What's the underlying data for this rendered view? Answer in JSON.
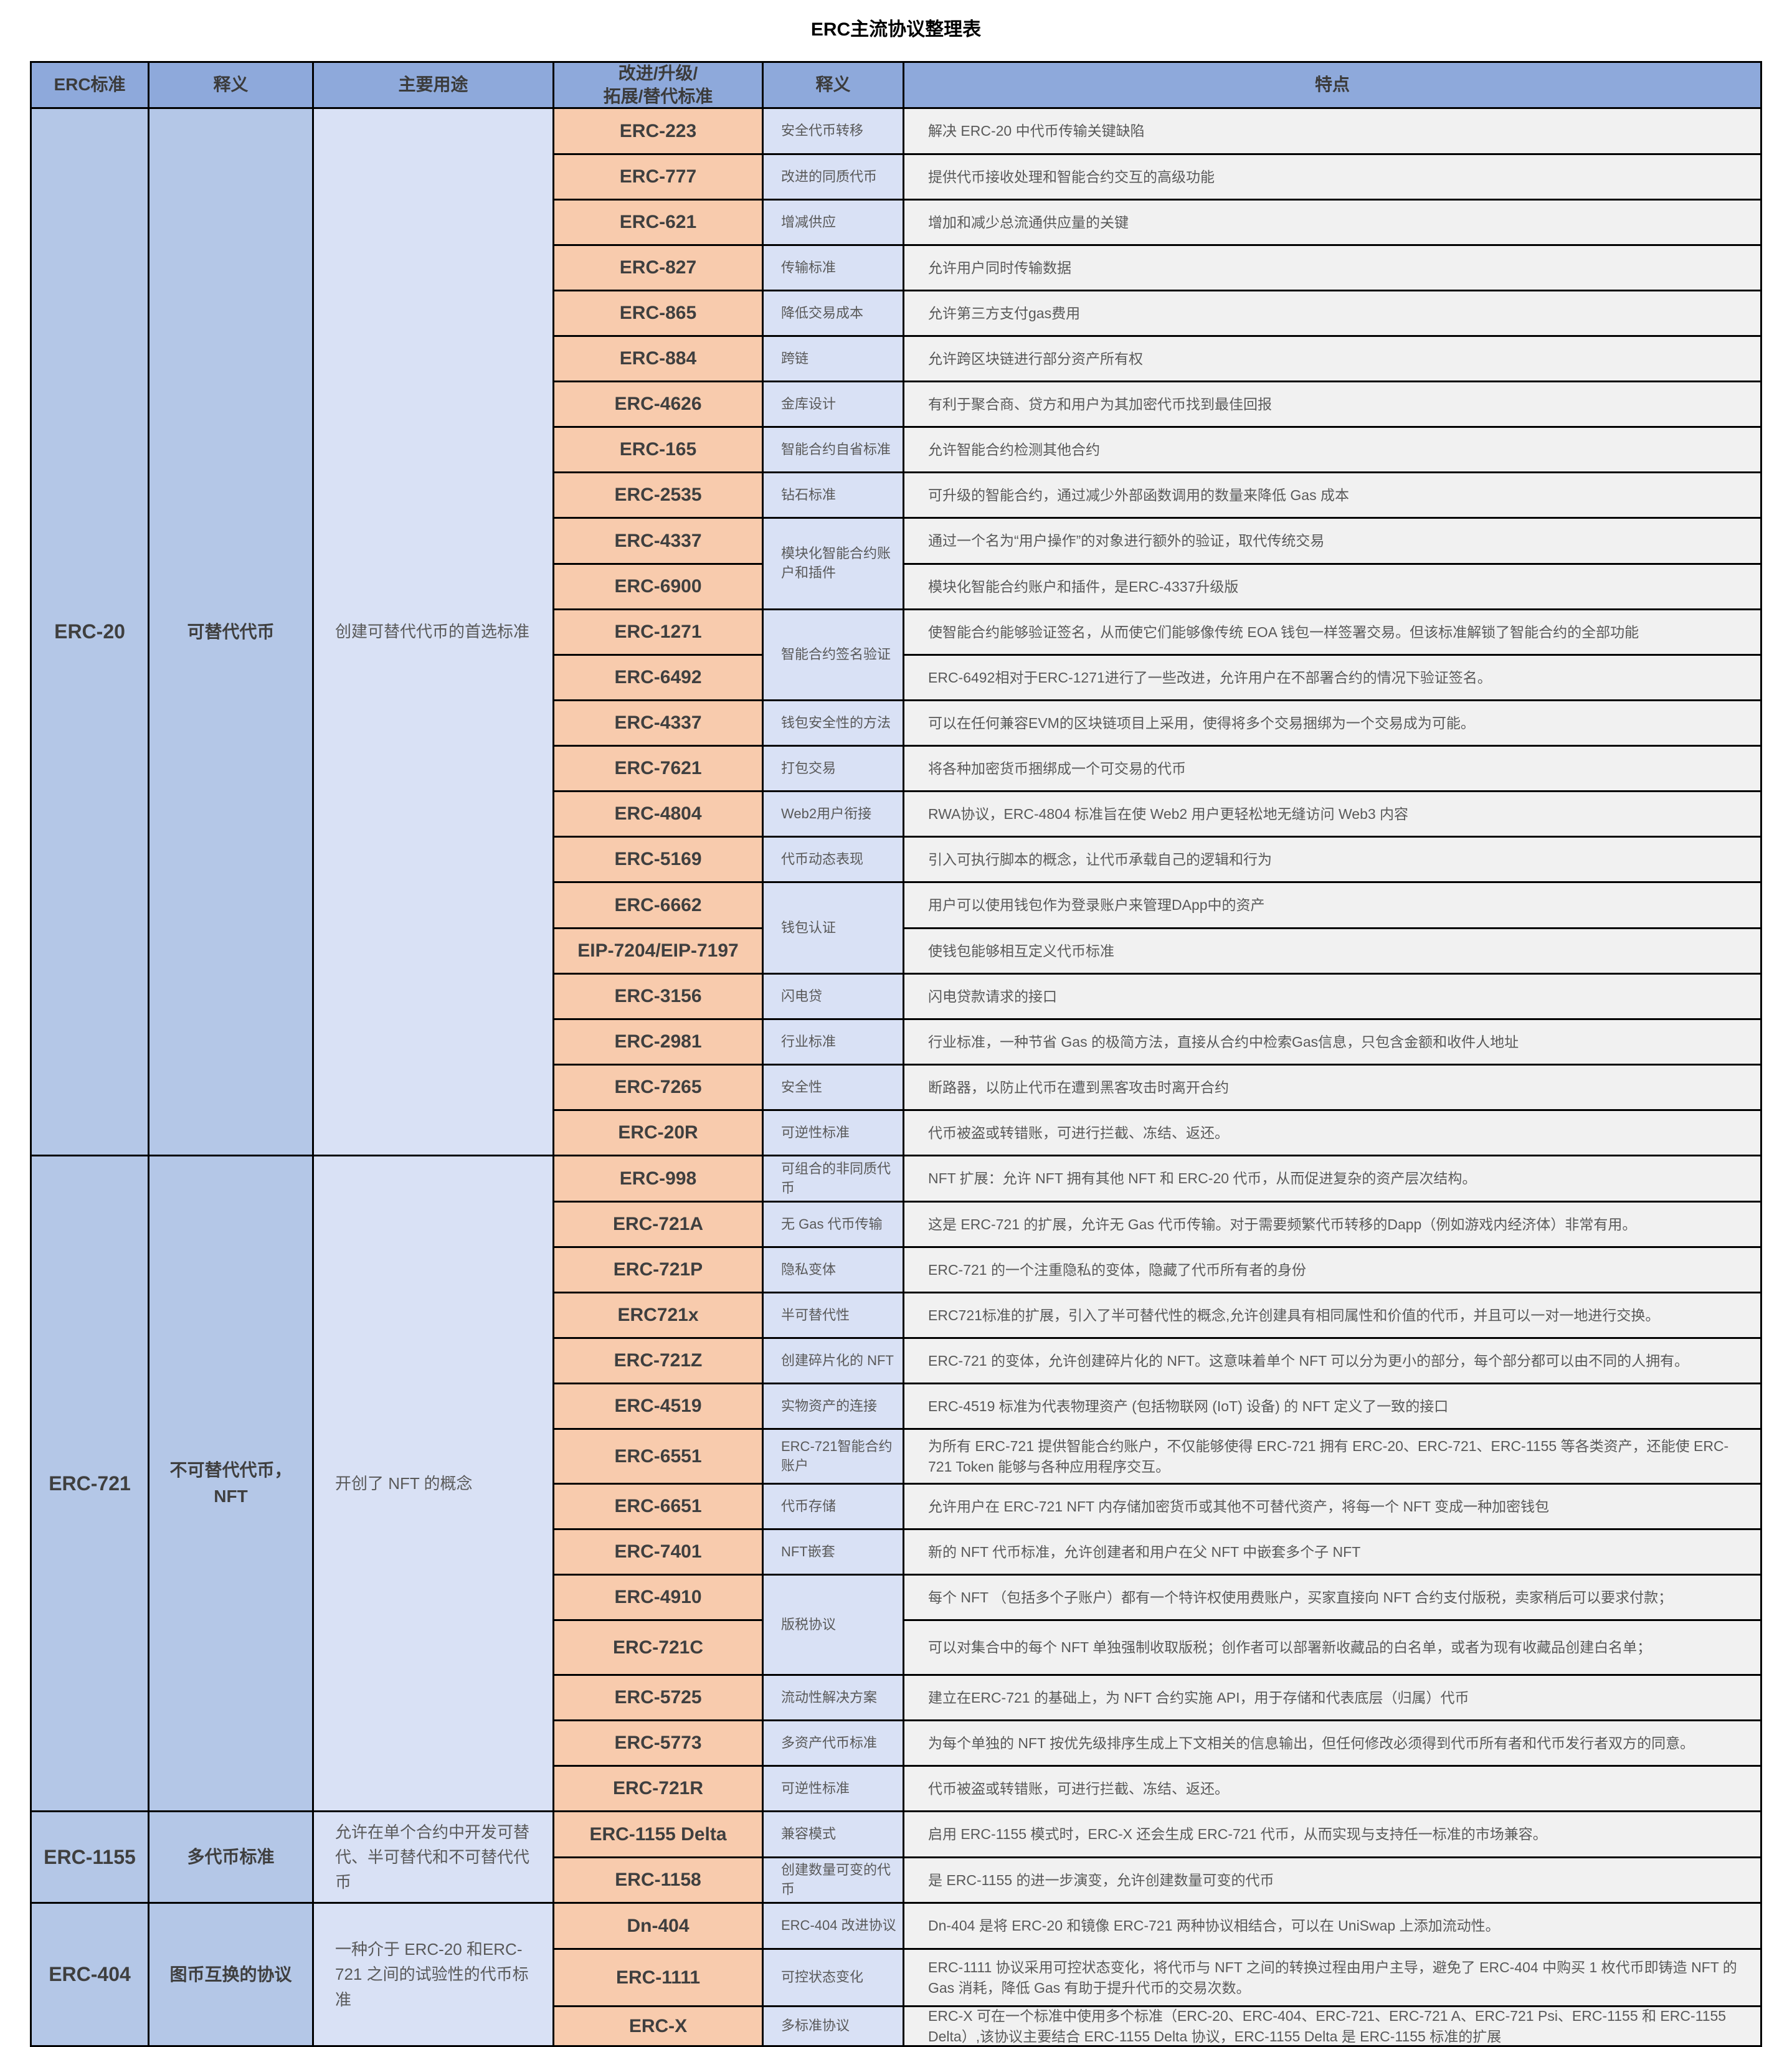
{
  "title": "ERC主流协议整理表",
  "header": [
    "ERC标准",
    "释义",
    "主要用途",
    "改进/升级/\n拓展/替代标准",
    "释义",
    "特点"
  ],
  "colors": {
    "header_bg": "#8EA9DB",
    "group_bg": "#B4C7E7",
    "usage_bg": "#D9E1F5",
    "standard_bg": "#F8CBAD",
    "definition_bg": "#D9E1F5",
    "feature_bg": "#F1F1F1",
    "border": "#000000",
    "text_dark": "#3F3F3F",
    "text_gray": "#595959"
  },
  "groups": [
    {
      "standard": "ERC-20",
      "meaning": "可替代代币",
      "usage": "创建可替代代币的首选标准",
      "rows": [
        {
          "std": "ERC-223",
          "def": "安全代币转移",
          "span": 1,
          "feat": "解决 ERC-20 中代币传输关键缺陷",
          "h": 74
        },
        {
          "std": "ERC-777",
          "def": "改进的同质代币",
          "span": 1,
          "feat": "提供代币接收处理和智能合约交互的高级功能",
          "h": 73
        },
        {
          "std": "ERC-621",
          "def": "增减供应",
          "span": 1,
          "feat": "增加和减少总流通供应量的关键",
          "h": 73
        },
        {
          "std": "ERC-827",
          "def": "传输标准",
          "span": 1,
          "feat": "允许用户同时传输数据",
          "h": 73
        },
        {
          "std": "ERC-865",
          "def": "降低交易成本",
          "span": 1,
          "feat": "允许第三方支付gas费用",
          "h": 73
        },
        {
          "std": "ERC-884",
          "def": "跨链",
          "span": 1,
          "feat": "允许跨区块链进行部分资产所有权",
          "h": 73
        },
        {
          "std": "ERC-4626",
          "def": "金库设计",
          "span": 1,
          "feat": "有利于聚合商、贷方和用户为其加密代币找到最佳回报",
          "h": 73
        },
        {
          "std": "ERC-165",
          "def": "智能合约自省标准",
          "span": 1,
          "feat": "允许智能合约检测其他合约",
          "h": 73
        },
        {
          "std": "ERC-2535",
          "def": "钻石标准",
          "span": 1,
          "feat": "可升级的智能合约，通过减少外部函数调用的数量来降低 Gas 成本",
          "h": 73
        },
        {
          "std": "ERC-4337",
          "def": "模块化智能合约账户和插件",
          "span": 2,
          "feat": "通过一个名为“用户操作”的对象进行额外的验证，取代传统交易",
          "h": 74
        },
        {
          "std": "ERC-6900",
          "def": null,
          "span": 0,
          "feat": "模块化智能合约账户和插件，是ERC-4337升级版",
          "h": 73
        },
        {
          "std": "ERC-1271",
          "def": "智能合约签名验证",
          "span": 2,
          "feat": "使智能合约能够验证签名，从而使它们能够像传统 EOA 钱包一样签署交易。但该标准解锁了智能合约的全部功能",
          "h": 73
        },
        {
          "std": "ERC-6492",
          "def": null,
          "span": 0,
          "feat": "ERC-6492相对于ERC-1271进行了一些改进，允许用户在不部署合约的情况下验证签名。",
          "h": 73
        },
        {
          "std": "ERC-4337",
          "def": "钱包安全性的方法",
          "span": 1,
          "feat": "可以在任何兼容EVM的区块链项目上采用，使得将多个交易捆绑为一个交易成为可能。",
          "h": 73
        },
        {
          "std": "ERC-7621",
          "def": "打包交易",
          "span": 1,
          "feat": "将各种加密货币捆绑成一个可交易的代币",
          "h": 73
        },
        {
          "std": "ERC-4804",
          "def": "Web2用户衔接",
          "span": 1,
          "feat": "RWA协议，ERC-4804 标准旨在使 Web2 用户更轻松地无缝访问 Web3 内容",
          "h": 73
        },
        {
          "std": "ERC-5169",
          "def": "代币动态表现",
          "span": 1,
          "feat": "引入可执行脚本的概念，让代币承载自己的逻辑和行为",
          "h": 73
        },
        {
          "std": "ERC-6662",
          "def": "钱包认证",
          "span": 2,
          "feat": "用户可以使用钱包作为登录账户来管理DApp中的资产",
          "h": 74
        },
        {
          "std": "EIP-7204/EIP-7197",
          "def": null,
          "span": 0,
          "feat": "使钱包能够相互定义代币标准",
          "h": 73
        },
        {
          "std": "ERC-3156",
          "def": "闪电贷",
          "span": 1,
          "feat": "闪电贷款请求的接口",
          "h": 73
        },
        {
          "std": "ERC-2981",
          "def": "行业标准",
          "span": 1,
          "feat": "行业标准，一种节省 Gas 的极简方法，直接从合约中检索Gas信息，只包含金额和收件人地址",
          "h": 73
        },
        {
          "std": "ERC-7265",
          "def": "安全性",
          "span": 1,
          "feat": "断路器，以防止代币在遭到黑客攻击时离开合约",
          "h": 73
        },
        {
          "std": "ERC-20R",
          "def": "可逆性标准",
          "span": 1,
          "feat": "代币被盗或转错账，可进行拦截、冻结、返还。",
          "h": 73
        }
      ]
    },
    {
      "standard": "ERC-721",
      "meaning": "不可替代代币，\nNFT",
      "usage": "开创了 NFT 的概念",
      "rows": [
        {
          "std": "ERC-998",
          "def": "可组合的非同质代币",
          "span": 1,
          "feat": "NFT 扩展：允许 NFT 拥有其他 NFT 和 ERC-20 代币，从而促进复杂的资产层次结构。",
          "h": 74
        },
        {
          "std": "ERC-721A",
          "def": "无 Gas 代币传输",
          "span": 1,
          "feat": "这是 ERC-721 的扩展，允许无 Gas 代币传输。对于需要频繁代币转移的Dapp（例如游戏内经济体）非常有用。",
          "h": 73
        },
        {
          "std": "ERC-721P",
          "def": "隐私变体",
          "span": 1,
          "feat": "ERC-721 的一个注重隐私的变体，隐藏了代币所有者的身份",
          "h": 73
        },
        {
          "std": "ERC721x",
          "def": "半可替代性",
          "span": 1,
          "feat": "ERC721标准的扩展，引入了半可替代性的概念,允许创建具有相同属性和价值的代币，并且可以一对一地进行交换。",
          "h": 73
        },
        {
          "std": "ERC-721Z",
          "def": "创建碎片化的 NFT",
          "span": 1,
          "feat": "ERC-721 的变体，允许创建碎片化的 NFT。这意味着单个 NFT 可以分为更小的部分，每个部分都可以由不同的人拥有。",
          "h": 73
        },
        {
          "std": "ERC-4519",
          "def": "实物资产的连接",
          "span": 1,
          "feat": "ERC-4519 标准为代表物理资产 (包括物联网 (IoT) 设备) 的 NFT 定义了一致的接口",
          "h": 73
        },
        {
          "std": "ERC-6551",
          "def": "ERC-721智能合约账户",
          "span": 1,
          "feat": "为所有 ERC-721 提供智能合约账户，不仅能够使得 ERC-721 拥有 ERC-20、ERC-721、ERC-1155 等各类资产，还能使 ERC-721 Token 能够与各种应用程序交互。",
          "h": 88
        },
        {
          "std": "ERC-6651",
          "def": "代币存储",
          "span": 1,
          "feat": "允许用户在 ERC-721 NFT 内存储加密货币或其他不可替代资产，将每一个 NFT 变成一种加密钱包",
          "h": 73
        },
        {
          "std": "ERC-7401",
          "def": "NFT嵌套",
          "span": 1,
          "feat": "新的 NFT 代币标准，允许创建者和用户在父 NFT 中嵌套多个子 NFT",
          "h": 73
        },
        {
          "std": "ERC-4910",
          "def": "版税协议",
          "span": 2,
          "feat": "每个 NFT （包括多个子账户）都有一个特许权使用费账户，买家直接向 NFT 合约支付版税，卖家稍后可以要求付款；",
          "h": 73
        },
        {
          "std": "ERC-721C",
          "def": null,
          "span": 0,
          "feat": "可以对集合中的每个 NFT 单独强制收取版税；创作者可以部署新收藏品的白名单，或者为现有收藏品创建白名单；",
          "h": 88
        },
        {
          "std": "ERC-5725",
          "def": "流动性解决方案",
          "span": 1,
          "feat": "建立在ERC-721 的基础上，为 NFT 合约实施 API，用于存储和代表底层（归属）代币",
          "h": 73
        },
        {
          "std": "ERC-5773",
          "def": "多资产代币标准",
          "span": 1,
          "feat": "为每个单独的 NFT 按优先级排序生成上下文相关的信息输出，但任何修改必须得到代币所有者和代币发行者双方的同意。",
          "h": 73
        },
        {
          "std": "ERC-721R",
          "def": "可逆性标准",
          "span": 1,
          "feat": "代币被盗或转错账，可进行拦截、冻结、返还。",
          "h": 73
        }
      ]
    },
    {
      "standard": "ERC-1155",
      "meaning": "多代币标准",
      "usage": "允许在单个合约中开发可替代、半可替代和不可替代代币",
      "rows": [
        {
          "std": "ERC-1155 Delta",
          "def": "兼容模式",
          "span": 1,
          "feat": "启用 ERC-1155 模式时，ERC-X 还会生成 ERC-721 代币，从而实现与支持任一标准的市场兼容。",
          "h": 74
        },
        {
          "std": "ERC-1158",
          "def": "创建数量可变的代币",
          "span": 1,
          "feat": "是 ERC-1155 的进一步演变，允许创建数量可变的代币",
          "h": 73
        }
      ]
    },
    {
      "standard": "ERC-404",
      "meaning": "图币互换的协议",
      "usage": "一种介于 ERC-20 和ERC-721 之间的试验性的代币标准",
      "rows": [
        {
          "std": "Dn-404",
          "def": "ERC-404 改进协议",
          "span": 1,
          "feat": "Dn-404 是将 ERC-20 和镜像 ERC-721 两种协议相结合，可以在 UniSwap 上添加流动性。",
          "h": 74
        },
        {
          "std": "ERC-1111",
          "def": "可控状态变化",
          "span": 1,
          "feat": "ERC-1111 协议采用可控状态变化，将代币与 NFT 之间的转换过程由用户主导，避免了 ERC-404 中购买 1 枚代币即铸造 NFT 的 Gas 消耗，降低 Gas 有助于提升代币的交易次数。",
          "h": 92
        },
        {
          "std": "ERC-X",
          "def": "多标准协议",
          "span": 1,
          "feat": "ERC-X 可在一个标准中使用多个标准（ERC-20、ERC-404、ERC-721、ERC-721 A、ERC-721 Psi、ERC-1155 和 ERC-1155 Delta）,该协议主要结合 ERC-1155 Delta 协议，ERC-1155 Delta 是 ERC-1155 标准的扩展",
          "h": 64
        }
      ]
    }
  ]
}
